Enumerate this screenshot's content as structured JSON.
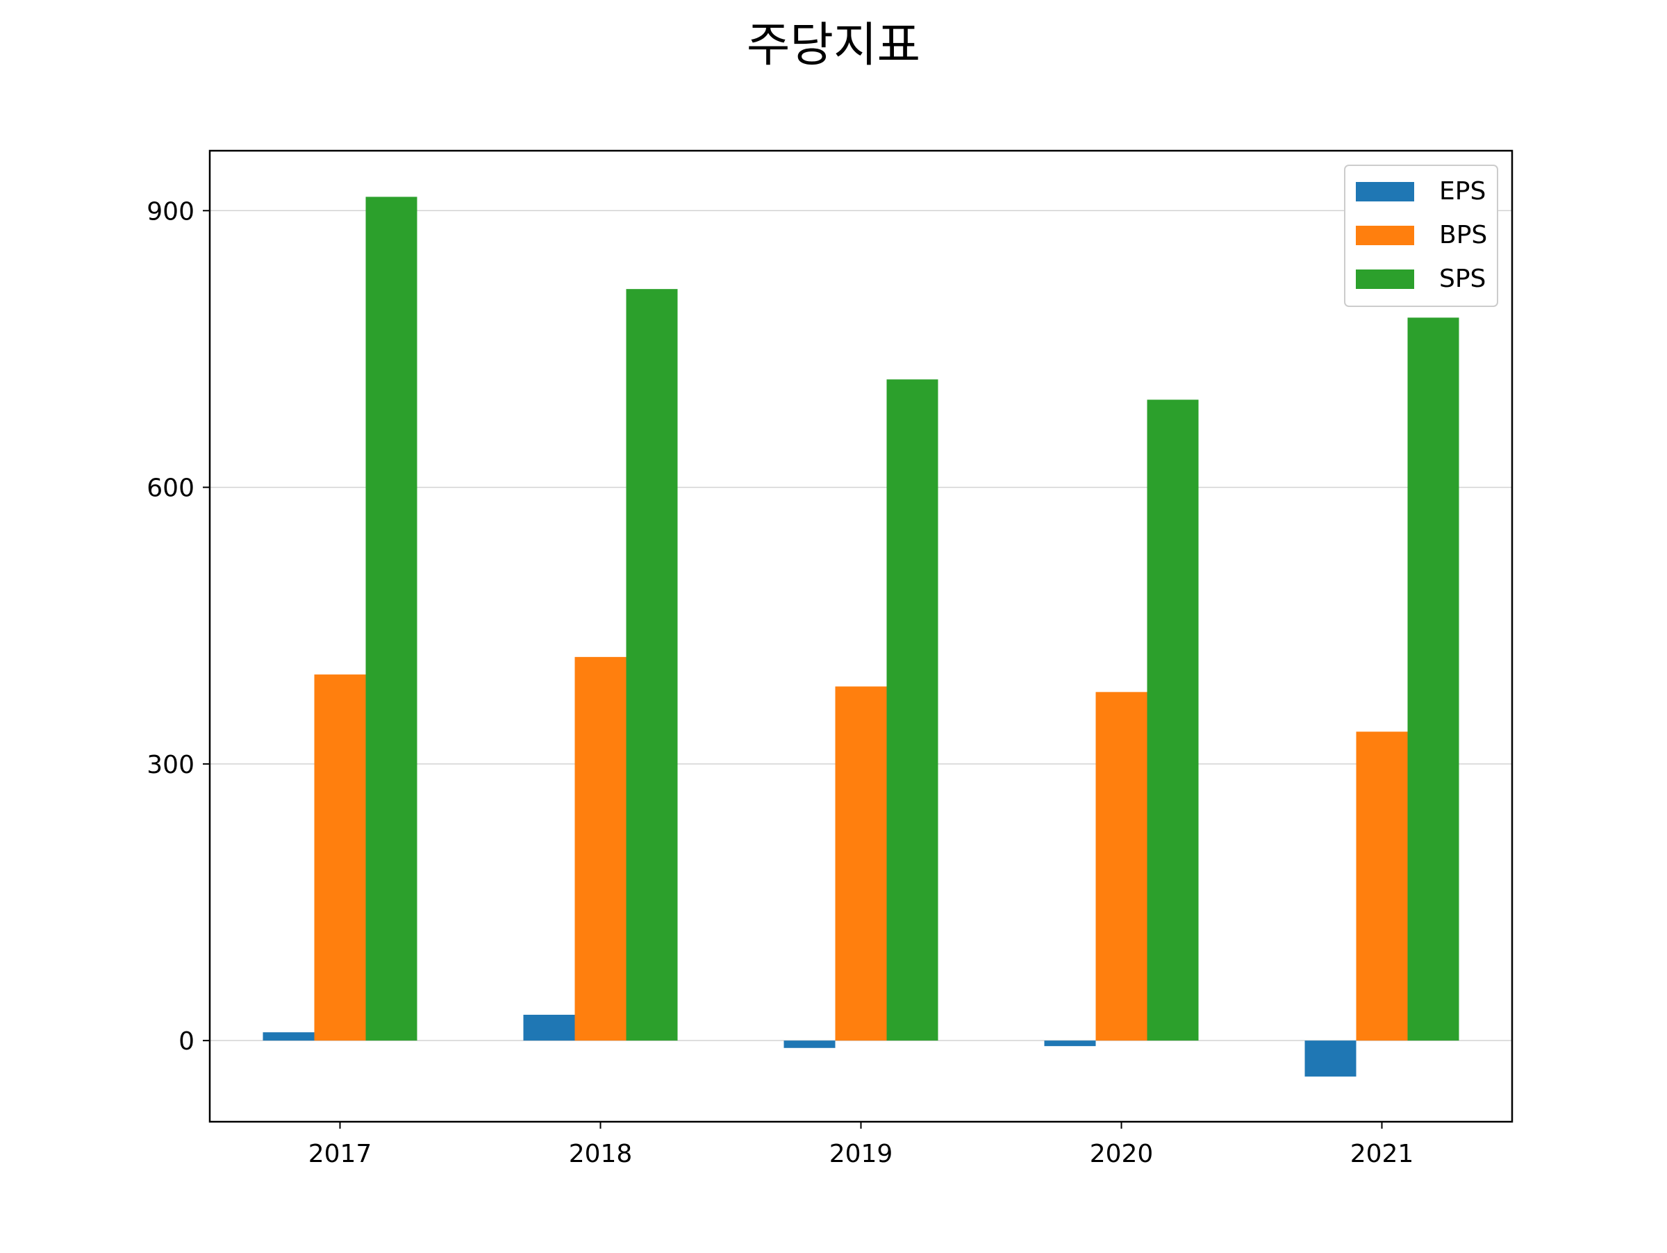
{
  "chart_data": {
    "type": "bar",
    "title": "주당지표",
    "xlabel": "",
    "ylabel": "",
    "categories": [
      "2017",
      "2018",
      "2019",
      "2020",
      "2021"
    ],
    "series": [
      {
        "name": "EPS",
        "color": "#1f77b4",
        "values": [
          9,
          28,
          -8,
          -6,
          -39
        ]
      },
      {
        "name": "BPS",
        "color": "#ff7f0e",
        "values": [
          397,
          416,
          384,
          378,
          335
        ]
      },
      {
        "name": "SPS",
        "color": "#2ca02c",
        "values": [
          915,
          815,
          717,
          695,
          784
        ]
      }
    ],
    "ylim": [
      -88,
      965
    ],
    "yticks": [
      0,
      300,
      600,
      900
    ],
    "grid": "horizontal",
    "legend": "top-right"
  }
}
